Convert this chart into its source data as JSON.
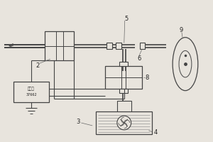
{
  "bg_color": "#e8e4dd",
  "line_color": "#444444",
  "label_color": "#222222",
  "fig_width": 3.0,
  "fig_height": 2.0,
  "dpi": 100
}
